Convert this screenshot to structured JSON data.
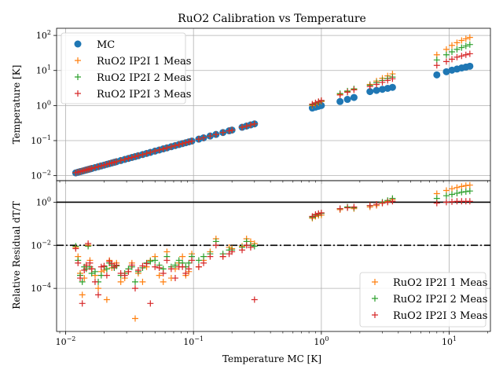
{
  "chart_data": [
    {
      "type": "scatter",
      "title": "RuO2 Calibration vs Temperature",
      "xlabel": "",
      "ylabel": "Temperature [K]",
      "xscale": "log",
      "yscale": "log",
      "xlim": [
        0.0085,
        21
      ],
      "ylim": [
        0.0072,
        160
      ],
      "xticks": [
        {
          "v": 0.01,
          "label": "10^-2"
        },
        {
          "v": 0.1,
          "label": "10^-1"
        },
        {
          "v": 1,
          "label": "10^0"
        },
        {
          "v": 10,
          "label": "10^1"
        }
      ],
      "yticks": [
        {
          "v": 0.01,
          "label": "10^-2"
        },
        {
          "v": 0.1,
          "label": "10^-1"
        },
        {
          "v": 1,
          "label": "10^0"
        },
        {
          "v": 10,
          "label": "10^1"
        },
        {
          "v": 100,
          "label": "10^2"
        }
      ],
      "grid": true,
      "legend_position": "upper-left",
      "x_values": [
        0.012,
        0.0125,
        0.013,
        0.0135,
        0.014,
        0.0145,
        0.015,
        0.0155,
        0.016,
        0.017,
        0.018,
        0.019,
        0.02,
        0.021,
        0.022,
        0.023,
        0.024,
        0.025,
        0.027,
        0.029,
        0.031,
        0.033,
        0.035,
        0.037,
        0.04,
        0.043,
        0.046,
        0.05,
        0.054,
        0.058,
        0.062,
        0.067,
        0.072,
        0.077,
        0.082,
        0.087,
        0.092,
        0.097,
        0.11,
        0.12,
        0.135,
        0.15,
        0.17,
        0.19,
        0.2,
        0.24,
        0.26,
        0.28,
        0.3,
        0.85,
        0.9,
        0.95,
        1.0,
        1.4,
        1.6,
        1.8,
        2.4,
        2.7,
        3.0,
        3.3,
        3.6,
        8.0,
        9.5,
        10.5,
        11.5,
        12.5,
        13.5,
        14.5
      ],
      "series": [
        {
          "name": "MC",
          "marker": "circle",
          "color": "#1f77b4",
          "values": [
            0.012,
            0.0125,
            0.013,
            0.0135,
            0.014,
            0.0145,
            0.015,
            0.0155,
            0.016,
            0.017,
            0.018,
            0.019,
            0.02,
            0.021,
            0.022,
            0.023,
            0.024,
            0.025,
            0.027,
            0.029,
            0.031,
            0.033,
            0.035,
            0.037,
            0.04,
            0.043,
            0.046,
            0.05,
            0.054,
            0.058,
            0.062,
            0.067,
            0.072,
            0.077,
            0.082,
            0.087,
            0.092,
            0.097,
            0.11,
            0.12,
            0.135,
            0.15,
            0.17,
            0.19,
            0.2,
            0.24,
            0.26,
            0.28,
            0.3,
            0.85,
            0.9,
            0.95,
            1.0,
            1.3,
            1.5,
            1.7,
            2.5,
            2.7,
            2.9,
            3.1,
            3.3,
            7.5,
            9.2,
            10.2,
            11.0,
            11.8,
            12.5,
            13.2
          ]
        },
        {
          "name": "RuO2 IP2I 1 Meas",
          "marker": "plus",
          "color": "#ff7f0e",
          "values": [
            0.0121,
            0.0126,
            0.0131,
            0.0136,
            0.0141,
            0.0146,
            0.0151,
            0.0156,
            0.0161,
            0.0171,
            0.0181,
            0.0191,
            0.0201,
            0.0211,
            0.0221,
            0.0231,
            0.0241,
            0.0251,
            0.0271,
            0.0291,
            0.0311,
            0.0331,
            0.0351,
            0.0371,
            0.0401,
            0.0431,
            0.0461,
            0.0501,
            0.0541,
            0.0581,
            0.0621,
            0.0671,
            0.0721,
            0.0771,
            0.0821,
            0.0871,
            0.0921,
            0.0971,
            0.1101,
            0.1201,
            0.1351,
            0.1501,
            0.1701,
            0.1901,
            0.2,
            0.24,
            0.26,
            0.28,
            0.3,
            1.0,
            1.1,
            1.2,
            1.3,
            2.1,
            2.5,
            2.9,
            4.0,
            5.0,
            6.0,
            7.0,
            8.0,
            28,
            40,
            52,
            62,
            72,
            80,
            88
          ]
        },
        {
          "name": "RuO2 IP2I 2 Meas",
          "marker": "plus",
          "color": "#2ca02c",
          "values": [
            0.0121,
            0.0126,
            0.0131,
            0.0136,
            0.0141,
            0.0146,
            0.0151,
            0.0156,
            0.0161,
            0.0171,
            0.0181,
            0.0191,
            0.0201,
            0.0211,
            0.0221,
            0.0231,
            0.0241,
            0.0251,
            0.0271,
            0.0291,
            0.0311,
            0.0331,
            0.0351,
            0.0371,
            0.0401,
            0.0431,
            0.0461,
            0.0501,
            0.0541,
            0.0581,
            0.0621,
            0.0671,
            0.0721,
            0.0771,
            0.0821,
            0.0871,
            0.0921,
            0.0971,
            0.1101,
            0.1201,
            0.1351,
            0.1501,
            0.1701,
            0.1901,
            0.2,
            0.24,
            0.26,
            0.28,
            0.3,
            1.05,
            1.15,
            1.25,
            1.35,
            2.2,
            2.6,
            3.0,
            3.8,
            4.5,
            5.2,
            5.9,
            6.5,
            20,
            28,
            34,
            40,
            45,
            50,
            55
          ]
        },
        {
          "name": "RuO2 IP2I 3 Meas",
          "marker": "plus",
          "color": "#d62728",
          "values": [
            0.0121,
            0.0126,
            0.0131,
            0.0136,
            0.0141,
            0.0146,
            0.0151,
            0.0156,
            0.0161,
            0.0171,
            0.0181,
            0.0191,
            0.0201,
            0.0211,
            0.0221,
            0.0231,
            0.0241,
            0.0251,
            0.0271,
            0.0291,
            0.0311,
            0.0331,
            0.0351,
            0.0371,
            0.0401,
            0.0431,
            0.0461,
            0.0501,
            0.0541,
            0.0581,
            0.0621,
            0.0671,
            0.0721,
            0.0771,
            0.0821,
            0.0871,
            0.0921,
            0.0971,
            0.1101,
            0.1201,
            0.1351,
            0.1501,
            0.1701,
            0.1901,
            0.2,
            0.24,
            0.26,
            0.28,
            0.3,
            1.1,
            1.2,
            1.3,
            1.4,
            2.0,
            2.4,
            2.8,
            3.5,
            4.0,
            4.6,
            5.2,
            5.8,
            14,
            18,
            21,
            24,
            26,
            28,
            30
          ]
        }
      ]
    },
    {
      "type": "scatter",
      "title": "",
      "xlabel": "Temperature MC [K]",
      "ylabel": "Relative Residual dT/T",
      "xscale": "log",
      "yscale": "log",
      "xlim": [
        0.0085,
        21
      ],
      "ylim": [
        1e-06,
        10
      ],
      "xticks": [
        {
          "v": 0.01,
          "label": "10^-2"
        },
        {
          "v": 0.1,
          "label": "10^-1"
        },
        {
          "v": 1,
          "label": "10^0"
        },
        {
          "v": 10,
          "label": "10^1"
        }
      ],
      "yticks": [
        {
          "v": 0.0001,
          "label": "10^-4"
        },
        {
          "v": 0.01,
          "label": "10^-2"
        },
        {
          "v": 1,
          "label": "10^0"
        }
      ],
      "grid": true,
      "legend_position": "lower-right",
      "reference_lines": [
        {
          "y": 1,
          "style": "solid"
        },
        {
          "y": 0.01,
          "style": "dashdot"
        }
      ],
      "x_values": [
        0.012,
        0.0125,
        0.013,
        0.0135,
        0.014,
        0.0145,
        0.015,
        0.0155,
        0.016,
        0.017,
        0.018,
        0.019,
        0.02,
        0.021,
        0.022,
        0.023,
        0.024,
        0.025,
        0.027,
        0.029,
        0.031,
        0.033,
        0.035,
        0.037,
        0.04,
        0.043,
        0.046,
        0.05,
        0.054,
        0.058,
        0.062,
        0.067,
        0.072,
        0.077,
        0.082,
        0.087,
        0.092,
        0.097,
        0.11,
        0.12,
        0.135,
        0.15,
        0.17,
        0.19,
        0.2,
        0.24,
        0.26,
        0.28,
        0.3,
        0.85,
        0.9,
        0.95,
        1.0,
        1.4,
        1.6,
        1.8,
        2.4,
        2.7,
        3.0,
        3.3,
        3.6,
        8.0,
        9.5,
        10.5,
        11.5,
        12.5,
        13.5,
        14.5
      ],
      "series": [
        {
          "name": "RuO2 IP2I 1 Meas",
          "marker": "plus",
          "color": "#ff7f0e",
          "values": [
            0.008,
            0.003,
            0.0005,
            5e-05,
            0.0003,
            0.001,
            0.01,
            0.002,
            0.0008,
            0.0004,
            0.0001,
            0.0006,
            0.0007,
            3e-05,
            0.002,
            0.0009,
            0.0012,
            0.0015,
            0.0002,
            0.0003,
            0.0006,
            0.0015,
            4e-06,
            0.0005,
            0.0002,
            0.001,
            0.002,
            0.003,
            0.0004,
            0.0002,
            0.005,
            0.0003,
            0.0008,
            0.0015,
            0.003,
            0.0004,
            0.0006,
            0.004,
            0.001,
            0.002,
            0.005,
            0.02,
            0.003,
            0.008,
            0.007,
            0.009,
            0.02,
            0.015,
            0.012,
            0.18,
            0.22,
            0.24,
            0.25,
            0.45,
            0.55,
            0.5,
            0.6,
            0.7,
            0.9,
            1.1,
            1.3,
            2.5,
            3.5,
            4.2,
            4.8,
            5.4,
            5.9,
            6.2
          ]
        },
        {
          "name": "RuO2 IP2I 2 Meas",
          "marker": "plus",
          "color": "#2ca02c",
          "values": [
            0.009,
            0.002,
            0.0004,
            0.0002,
            0.001,
            0.0008,
            0.009,
            0.001,
            0.0005,
            0.0006,
            0.0002,
            0.0004,
            0.001,
            0.0008,
            0.0015,
            0.0012,
            0.0009,
            0.0011,
            0.0004,
            0.0005,
            0.0008,
            0.001,
            0.0002,
            0.0006,
            0.0009,
            0.0015,
            0.0018,
            0.002,
            0.0012,
            0.0008,
            0.003,
            0.001,
            0.0012,
            0.002,
            0.0015,
            0.001,
            0.0015,
            0.003,
            0.002,
            0.003,
            0.004,
            0.015,
            0.004,
            0.006,
            0.006,
            0.008,
            0.015,
            0.01,
            0.009,
            0.2,
            0.25,
            0.28,
            0.3,
            0.5,
            0.6,
            0.55,
            0.7,
            0.8,
            1.0,
            1.2,
            1.5,
            1.5,
            2.0,
            2.3,
            2.6,
            2.9,
            3.1,
            3.3
          ]
        },
        {
          "name": "RuO2 IP2I 3 Meas",
          "marker": "plus",
          "color": "#d62728",
          "values": [
            0.007,
            0.0015,
            0.0003,
            2e-05,
            0.0007,
            0.0012,
            0.012,
            0.0015,
            0.0008,
            0.0002,
            5e-05,
            0.001,
            0.0011,
            0.0004,
            0.0018,
            0.0014,
            0.001,
            0.0012,
            0.0005,
            0.0004,
            0.0006,
            0.0012,
            0.0001,
            0.0007,
            0.0011,
            0.0014,
            2e-05,
            0.001,
            0.0009,
            0.0005,
            0.002,
            0.0008,
            0.0003,
            0.001,
            0.001,
            0.0005,
            0.0008,
            0.002,
            0.001,
            0.0015,
            0.003,
            0.01,
            0.003,
            0.004,
            0.005,
            0.006,
            0.01,
            0.008,
            3e-05,
            0.22,
            0.27,
            0.3,
            0.32,
            0.5,
            0.55,
            0.6,
            0.7,
            0.8,
            0.9,
            1.0,
            1.1,
            0.9,
            1.0,
            1.05,
            1.1,
            1.1,
            1.1,
            1.1
          ]
        }
      ]
    }
  ]
}
